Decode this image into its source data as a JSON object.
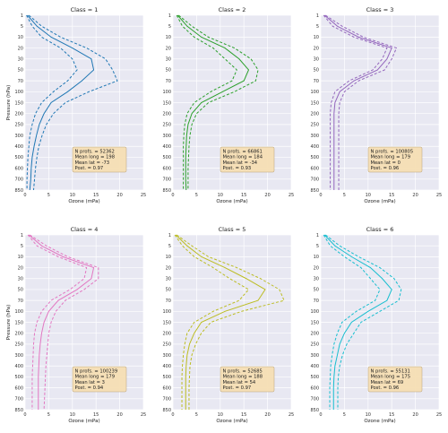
{
  "chart_data": {
    "type": "line",
    "xlabel": "Ozone (mPa)",
    "ylabel": "Pressure (hPa)",
    "xlim": [
      0,
      25
    ],
    "xticks": [
      0,
      5,
      10,
      15,
      20,
      25
    ],
    "y_levels": [
      1,
      5,
      10,
      20,
      30,
      50,
      70,
      100,
      150,
      200,
      250,
      300,
      400,
      500,
      600,
      700,
      850
    ],
    "grid": true,
    "background": "#e8e8f2",
    "panels": [
      {
        "title": "Class = 1",
        "color": "#1f77b4",
        "mean": [
          0.5,
          2.5,
          5.5,
          10.0,
          14.0,
          14.5,
          12.0,
          9.0,
          5.5,
          4.0,
          3.0,
          2.4,
          1.9,
          1.5,
          1.3,
          1.2,
          1.0
        ],
        "lower": [
          0.3,
          1.5,
          3.5,
          7.5,
          10.0,
          11.0,
          9.0,
          6.0,
          3.5,
          2.2,
          1.5,
          1.0,
          0.8,
          0.6,
          0.5,
          0.4,
          0.4
        ],
        "upper": [
          0.8,
          3.5,
          7.5,
          13.0,
          17.0,
          18.5,
          19.5,
          13.5,
          8.5,
          6.0,
          4.5,
          3.6,
          2.9,
          2.5,
          2.2,
          2.0,
          1.8
        ],
        "stats": [
          "N profs. = 52362",
          "Mean long = 198",
          "Mean lat = -73",
          "Post. = 0.97"
        ]
      },
      {
        "title": "Class = 2",
        "color": "#2ca02c",
        "mean": [
          1.0,
          3.0,
          6.0,
          11.0,
          14.0,
          16.0,
          15.0,
          10.5,
          6.0,
          4.0,
          3.2,
          2.9,
          2.8,
          2.7,
          2.7,
          2.7,
          2.8
        ],
        "lower": [
          0.8,
          2.0,
          4.5,
          8.5,
          11.0,
          13.5,
          12.5,
          8.0,
          4.5,
          3.0,
          2.5,
          2.3,
          2.2,
          2.2,
          2.2,
          2.2,
          2.2
        ],
        "upper": [
          1.2,
          4.0,
          7.5,
          13.0,
          16.5,
          18.0,
          17.5,
          13.0,
          7.5,
          5.0,
          4.0,
          3.6,
          3.4,
          3.3,
          3.2,
          3.2,
          3.2
        ],
        "stats": [
          "N profs. = 66861",
          "Mean long = 184",
          "Mean lat = -34",
          "Post. = 0.93"
        ]
      },
      {
        "title": "Class = 3",
        "color": "#9467bd",
        "mean": [
          0.8,
          3.5,
          8.0,
          15.0,
          14.0,
          12.0,
          7.0,
          4.0,
          3.0,
          2.8,
          2.8,
          2.8,
          2.8,
          2.8,
          2.8,
          2.8,
          2.8
        ],
        "lower": [
          0.6,
          2.5,
          7.0,
          14.0,
          13.0,
          11.0,
          6.0,
          3.0,
          2.2,
          2.0,
          2.0,
          2.0,
          2.0,
          2.0,
          2.0,
          2.0,
          2.0
        ],
        "upper": [
          1.0,
          4.5,
          9.0,
          16.0,
          15.0,
          13.5,
          8.0,
          5.0,
          4.0,
          3.8,
          3.8,
          3.8,
          3.8,
          3.8,
          3.8,
          3.8,
          3.8
        ],
        "stats": [
          "N profs. = 100805",
          "Mean long = 179",
          "Mean lat = 0",
          "Post. = 0.96"
        ]
      },
      {
        "title": "Class = 4",
        "color": "#e377c2",
        "mean": [
          0.8,
          3.5,
          8.0,
          14.5,
          14.0,
          11.0,
          7.0,
          5.0,
          4.0,
          3.5,
          3.2,
          3.0,
          2.9,
          2.8,
          2.8,
          2.8,
          2.8
        ],
        "lower": [
          0.6,
          2.5,
          7.0,
          13.0,
          12.5,
          9.5,
          5.5,
          3.5,
          2.5,
          2.0,
          1.8,
          1.7,
          1.6,
          1.5,
          1.5,
          1.5,
          1.5
        ],
        "upper": [
          1.0,
          4.5,
          9.0,
          15.5,
          15.5,
          12.5,
          8.5,
          6.5,
          5.5,
          5.0,
          4.8,
          4.6,
          4.4,
          4.3,
          4.2,
          4.1,
          4.0
        ],
        "stats": [
          "N profs. = 100239",
          "Mean long = 179",
          "Mean lat = 3",
          "Post. = 0.94"
        ]
      },
      {
        "title": "Class = 5",
        "color": "#bcbd22",
        "mean": [
          0.6,
          3.0,
          6.0,
          11.0,
          15.5,
          19.5,
          18.0,
          11.0,
          6.0,
          4.5,
          3.5,
          3.0,
          2.8,
          2.7,
          2.7,
          2.7,
          2.7
        ],
        "lower": [
          0.4,
          2.0,
          4.5,
          8.5,
          12.0,
          16.0,
          14.0,
          8.5,
          4.5,
          3.0,
          2.5,
          2.2,
          2.0,
          1.9,
          1.9,
          1.9,
          1.9
        ],
        "upper": [
          0.8,
          4.0,
          7.5,
          13.5,
          18.5,
          22.5,
          23.5,
          14.5,
          8.0,
          6.0,
          4.8,
          4.0,
          3.6,
          3.5,
          3.4,
          3.4,
          3.4
        ],
        "stats": [
          "N profs. = 52685",
          "Mean long = 188",
          "Mean lat = 54",
          "Post. = 0.97"
        ]
      },
      {
        "title": "Class = 6",
        "color": "#17becf",
        "mean": [
          0.8,
          3.0,
          6.5,
          10.5,
          13.0,
          15.0,
          14.0,
          10.0,
          6.5,
          5.0,
          4.0,
          3.5,
          3.0,
          2.8,
          2.7,
          2.7,
          2.7
        ],
        "lower": [
          0.6,
          2.0,
          5.0,
          8.5,
          10.5,
          12.5,
          11.5,
          7.5,
          4.5,
          3.5,
          2.8,
          2.4,
          2.1,
          2.0,
          1.9,
          1.9,
          1.9
        ],
        "upper": [
          1.0,
          4.0,
          8.0,
          12.5,
          15.5,
          17.0,
          16.5,
          12.5,
          8.5,
          7.0,
          5.5,
          4.6,
          4.0,
          3.7,
          3.6,
          3.6,
          3.6
        ],
        "stats": [
          "N profs. = 55131",
          "Mean long = 175",
          "Mean lat = 69",
          "Post. = 0.96"
        ]
      }
    ]
  }
}
